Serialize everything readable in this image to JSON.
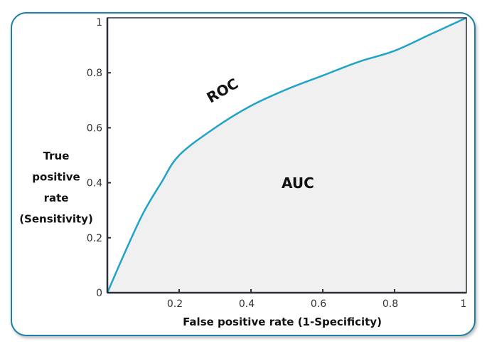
{
  "chart_data": {
    "type": "area",
    "xlabel": "False positive rate (1-Specificity)",
    "ylabel_lines": [
      "True",
      "positive",
      "rate",
      "(Sensitivity)"
    ],
    "xlim": [
      0,
      1
    ],
    "ylim": [
      0,
      1
    ],
    "xticks": [
      "0.2",
      "0.4",
      "0.6",
      "0.8",
      "1"
    ],
    "yticks": [
      "0",
      "0.2",
      "0.4",
      "0.6",
      "0.8",
      "1"
    ],
    "grid": false,
    "annotations": {
      "curve": "ROC",
      "area": "AUC"
    },
    "x": [
      0,
      0.05,
      0.1,
      0.15,
      0.2,
      0.3,
      0.4,
      0.5,
      0.6,
      0.7,
      0.8,
      0.9,
      1
    ],
    "y": [
      0,
      0.15,
      0.29,
      0.4,
      0.5,
      0.6,
      0.68,
      0.74,
      0.79,
      0.84,
      0.88,
      0.94,
      1
    ],
    "colors": {
      "curve": "#1fa3c9",
      "area": "#f0f0f0",
      "frame": "#1b7fa6",
      "axis": "#2a2f3a"
    }
  }
}
